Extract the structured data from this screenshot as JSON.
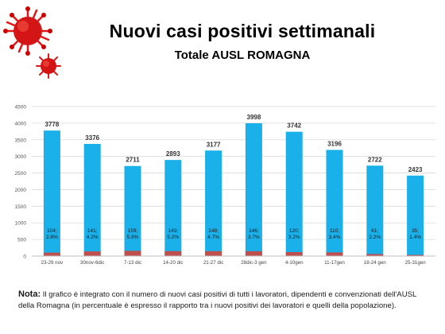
{
  "header": {
    "title": "Nuovi casi positivi settimanali",
    "subtitle": "Totale AUSL ROMAGNA"
  },
  "chart_data": {
    "type": "bar",
    "categories": [
      "23-29 nov",
      "30nov-6dic",
      "7-13 dic",
      "14-20 dic",
      "21-27 dic",
      "28dic-3 gen",
      "4-10gen",
      "11-17gen",
      "18-24 gen",
      "25-31gen"
    ],
    "series": [
      {
        "values": [
          3778,
          3376,
          2711,
          2893,
          3177,
          3998,
          3742,
          3196,
          2722,
          2423
        ]
      },
      {
        "values": [
          104,
          141,
          159,
          149,
          148,
          146,
          120,
          110,
          61,
          35
        ]
      }
    ],
    "total_labels": [
      "3778",
      "3376",
      "2711",
      "2893",
      "3177",
      "3998",
      "3742",
      "3196",
      "2722",
      "2423"
    ],
    "worker_labels": [
      [
        "104;",
        "2.8%"
      ],
      [
        "141;",
        "4.2%"
      ],
      [
        "159;",
        "5.9%"
      ],
      [
        "149;",
        "5.2%"
      ],
      [
        "148;",
        "4.7%"
      ],
      [
        "146;",
        "3.7%"
      ],
      [
        "120;",
        "3.2%"
      ],
      [
        "110;",
        "3.4%"
      ],
      [
        "61;",
        "2.2%"
      ],
      [
        "35;",
        "1.4%"
      ]
    ],
    "y_ticks": [
      "0",
      "500",
      "1000",
      "1500",
      "2000",
      "2500",
      "3000",
      "3500",
      "4000",
      "4500"
    ],
    "ylim": [
      0,
      4500
    ],
    "grid": true,
    "colors": {
      "total": "#1ab0ea",
      "workers": "#c0504d",
      "grid": "#d9d9d9"
    }
  },
  "note": {
    "label": "Nota:",
    "text": " Il grafico è integrato con il numero di nuovi casi positivi di tutti i lavoratori, dipendenti e convenzionati dell'AUSL della Romagna (in percentuale è espresso il rapporto tra i nuovi positivi dei lavoratori e quelli della popolazione)."
  }
}
